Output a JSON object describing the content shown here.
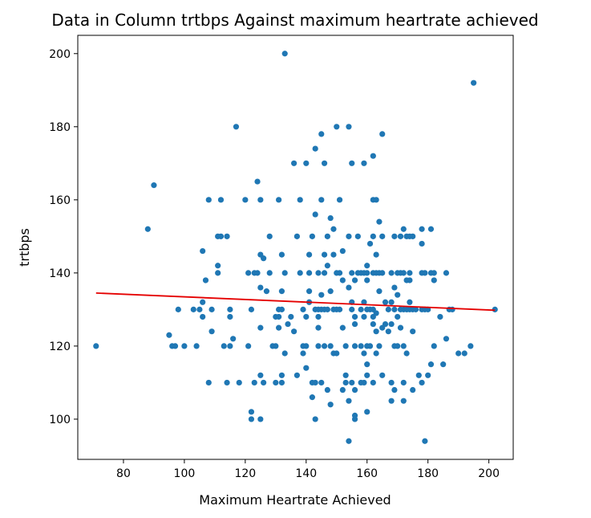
{
  "chart_data": {
    "type": "scatter",
    "title": "Data in Column trtbps Against maximum heartrate achieved",
    "xlabel": "Maximum Heartrate Achieved",
    "ylabel": "trtbps",
    "xlim": [
      65,
      208
    ],
    "ylim": [
      89,
      205
    ],
    "xticks": [
      80,
      100,
      120,
      140,
      160,
      180,
      200
    ],
    "yticks": [
      100,
      120,
      140,
      160,
      180,
      200
    ],
    "grid": false,
    "point_color": "#1f77b4",
    "trend_color": "#e50000",
    "trend_line": {
      "x": [
        71,
        202
      ],
      "y": [
        134.5,
        129.8
      ]
    },
    "points": [
      [
        71,
        120
      ],
      [
        88,
        152
      ],
      [
        90,
        164
      ],
      [
        95,
        123
      ],
      [
        96,
        120
      ],
      [
        97,
        120
      ],
      [
        98,
        130
      ],
      [
        100,
        120
      ],
      [
        103,
        130
      ],
      [
        104,
        120
      ],
      [
        105,
        130
      ],
      [
        106,
        132
      ],
      [
        106,
        128
      ],
      [
        106,
        146
      ],
      [
        107,
        138
      ],
      [
        108,
        160
      ],
      [
        108,
        110
      ],
      [
        109,
        130
      ],
      [
        109,
        124
      ],
      [
        111,
        142
      ],
      [
        111,
        140
      ],
      [
        111,
        150
      ],
      [
        112,
        150
      ],
      [
        112,
        160
      ],
      [
        113,
        120
      ],
      [
        114,
        150
      ],
      [
        114,
        110
      ],
      [
        115,
        130
      ],
      [
        115,
        128
      ],
      [
        115,
        120
      ],
      [
        116,
        122
      ],
      [
        117,
        180
      ],
      [
        118,
        110
      ],
      [
        120,
        160
      ],
      [
        121,
        120
      ],
      [
        121,
        140
      ],
      [
        122,
        130
      ],
      [
        122,
        102
      ],
      [
        122,
        100
      ],
      [
        123,
        140
      ],
      [
        123,
        110
      ],
      [
        124,
        165
      ],
      [
        124,
        140
      ],
      [
        125,
        160
      ],
      [
        125,
        145
      ],
      [
        125,
        136
      ],
      [
        125,
        125
      ],
      [
        125,
        112
      ],
      [
        125,
        100
      ],
      [
        126,
        144
      ],
      [
        126,
        110
      ],
      [
        127,
        135
      ],
      [
        128,
        150
      ],
      [
        128,
        140
      ],
      [
        129,
        120
      ],
      [
        130,
        120
      ],
      [
        130,
        128
      ],
      [
        130,
        110
      ],
      [
        131,
        130
      ],
      [
        131,
        128
      ],
      [
        131,
        160
      ],
      [
        131,
        125
      ],
      [
        132,
        145
      ],
      [
        132,
        130
      ],
      [
        132,
        135
      ],
      [
        132,
        110
      ],
      [
        132,
        112
      ],
      [
        133,
        200
      ],
      [
        133,
        140
      ],
      [
        133,
        118
      ],
      [
        134,
        126
      ],
      [
        135,
        128
      ],
      [
        136,
        170
      ],
      [
        136,
        124
      ],
      [
        137,
        150
      ],
      [
        137,
        112
      ],
      [
        138,
        160
      ],
      [
        138,
        140
      ],
      [
        139,
        130
      ],
      [
        139,
        120
      ],
      [
        139,
        118
      ],
      [
        140,
        170
      ],
      [
        140,
        128
      ],
      [
        140,
        120
      ],
      [
        140,
        114
      ],
      [
        141,
        145
      ],
      [
        141,
        140
      ],
      [
        141,
        135
      ],
      [
        141,
        132
      ],
      [
        142,
        110
      ],
      [
        142,
        106
      ],
      [
        142,
        150
      ],
      [
        143,
        100
      ],
      [
        143,
        174
      ],
      [
        143,
        156
      ],
      [
        143,
        130
      ],
      [
        143,
        110
      ],
      [
        144,
        140
      ],
      [
        144,
        128
      ],
      [
        144,
        120
      ],
      [
        144,
        125
      ],
      [
        144,
        130
      ],
      [
        145,
        178
      ],
      [
        145,
        160
      ],
      [
        145,
        134
      ],
      [
        145,
        130
      ],
      [
        145,
        110
      ],
      [
        146,
        170
      ],
      [
        146,
        145
      ],
      [
        146,
        140
      ],
      [
        146,
        130
      ],
      [
        146,
        120
      ],
      [
        147,
        142
      ],
      [
        147,
        130
      ],
      [
        147,
        150
      ],
      [
        147,
        108
      ],
      [
        148,
        155
      ],
      [
        148,
        135
      ],
      [
        148,
        120
      ],
      [
        148,
        104
      ],
      [
        149,
        130
      ],
      [
        149,
        118
      ],
      [
        149,
        145
      ],
      [
        149,
        152
      ],
      [
        150,
        180
      ],
      [
        150,
        130
      ],
      [
        150,
        140
      ],
      [
        150,
        118
      ],
      [
        151,
        160
      ],
      [
        151,
        130
      ],
      [
        151,
        140
      ],
      [
        152,
        146
      ],
      [
        152,
        125
      ],
      [
        152,
        108
      ],
      [
        152,
        138
      ],
      [
        153,
        112
      ],
      [
        153,
        110
      ],
      [
        153,
        120
      ],
      [
        154,
        180
      ],
      [
        154,
        150
      ],
      [
        154,
        94
      ],
      [
        154,
        105
      ],
      [
        154,
        136
      ],
      [
        155,
        170
      ],
      [
        155,
        140
      ],
      [
        155,
        132
      ],
      [
        155,
        130
      ],
      [
        155,
        110
      ],
      [
        156,
        128
      ],
      [
        156,
        126
      ],
      [
        156,
        138
      ],
      [
        156,
        100
      ],
      [
        156,
        101
      ],
      [
        156,
        108
      ],
      [
        156,
        120
      ],
      [
        157,
        150
      ],
      [
        157,
        140
      ],
      [
        158,
        120
      ],
      [
        158,
        130
      ],
      [
        158,
        140
      ],
      [
        158,
        110
      ],
      [
        159,
        170
      ],
      [
        159,
        132
      ],
      [
        159,
        140
      ],
      [
        159,
        128
      ],
      [
        159,
        118
      ],
      [
        159,
        110
      ],
      [
        160,
        142
      ],
      [
        160,
        140
      ],
      [
        160,
        138
      ],
      [
        160,
        130
      ],
      [
        160,
        120
      ],
      [
        160,
        115
      ],
      [
        160,
        112
      ],
      [
        160,
        102
      ],
      [
        161,
        148
      ],
      [
        161,
        130
      ],
      [
        161,
        120
      ],
      [
        162,
        172
      ],
      [
        162,
        160
      ],
      [
        162,
        150
      ],
      [
        162,
        140
      ],
      [
        162,
        130
      ],
      [
        162,
        128
      ],
      [
        162,
        126
      ],
      [
        162,
        110
      ],
      [
        163,
        160
      ],
      [
        163,
        145
      ],
      [
        163,
        140
      ],
      [
        163,
        129
      ],
      [
        163,
        124
      ],
      [
        163,
        118
      ],
      [
        164,
        154
      ],
      [
        164,
        140
      ],
      [
        164,
        135
      ],
      [
        164,
        120
      ],
      [
        165,
        178
      ],
      [
        165,
        150
      ],
      [
        165,
        140
      ],
      [
        165,
        125
      ],
      [
        165,
        112
      ],
      [
        166,
        132
      ],
      [
        166,
        126
      ],
      [
        167,
        124
      ],
      [
        167,
        130
      ],
      [
        168,
        140
      ],
      [
        168,
        132
      ],
      [
        168,
        126
      ],
      [
        168,
        110
      ],
      [
        168,
        105
      ],
      [
        169,
        150
      ],
      [
        169,
        136
      ],
      [
        169,
        130
      ],
      [
        169,
        120
      ],
      [
        169,
        108
      ],
      [
        170,
        140
      ],
      [
        170,
        134
      ],
      [
        170,
        128
      ],
      [
        170,
        120
      ],
      [
        171,
        150
      ],
      [
        171,
        140
      ],
      [
        171,
        130
      ],
      [
        171,
        125
      ],
      [
        172,
        152
      ],
      [
        172,
        140
      ],
      [
        172,
        130
      ],
      [
        172,
        120
      ],
      [
        172,
        110
      ],
      [
        172,
        105
      ],
      [
        173,
        150
      ],
      [
        173,
        138
      ],
      [
        173,
        130
      ],
      [
        173,
        118
      ],
      [
        174,
        150
      ],
      [
        174,
        140
      ],
      [
        174,
        138
      ],
      [
        174,
        132
      ],
      [
        174,
        130
      ],
      [
        175,
        150
      ],
      [
        175,
        130
      ],
      [
        175,
        124
      ],
      [
        175,
        108
      ],
      [
        176,
        130
      ],
      [
        177,
        112
      ],
      [
        178,
        152
      ],
      [
        178,
        148
      ],
      [
        178,
        140
      ],
      [
        178,
        130
      ],
      [
        178,
        110
      ],
      [
        179,
        130
      ],
      [
        179,
        140
      ],
      [
        179,
        94
      ],
      [
        180,
        130
      ],
      [
        180,
        112
      ],
      [
        181,
        152
      ],
      [
        181,
        140
      ],
      [
        181,
        115
      ],
      [
        182,
        120
      ],
      [
        182,
        138
      ],
      [
        182,
        140
      ],
      [
        184,
        128
      ],
      [
        185,
        115
      ],
      [
        186,
        140
      ],
      [
        186,
        122
      ],
      [
        187,
        130
      ],
      [
        188,
        130
      ],
      [
        190,
        118
      ],
      [
        192,
        118
      ],
      [
        194,
        120
      ],
      [
        195,
        192
      ],
      [
        202,
        130
      ]
    ]
  }
}
